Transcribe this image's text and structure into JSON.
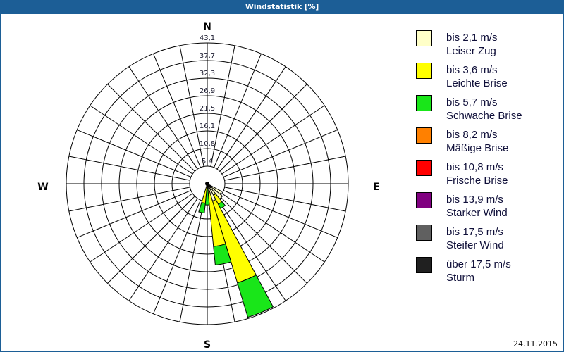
{
  "window": {
    "title": "Windstatistik [%]",
    "date": "24.11.2015"
  },
  "compass": {
    "north": "N",
    "east": "E",
    "south": "S",
    "west": "W"
  },
  "legend": [
    {
      "speed": "bis 2,1 m/s",
      "name": "Leiser Zug",
      "color": "#ffffc8"
    },
    {
      "speed": "bis 3,6 m/s",
      "name": "Leichte Brise",
      "color": "#ffff00"
    },
    {
      "speed": "bis 5,7 m/s",
      "name": "Schwache Brise",
      "color": "#19e619"
    },
    {
      "speed": "bis 8,2 m/s",
      "name": "Mäßige Brise",
      "color": "#ff8000"
    },
    {
      "speed": "bis 10,8 m/s",
      "name": "Frische Brise",
      "color": "#ff0000"
    },
    {
      "speed": "bis 13,9 m/s",
      "name": "Starker Wind",
      "color": "#800080"
    },
    {
      "speed": "bis 17,5 m/s",
      "name": "Steifer Wind",
      "color": "#606060"
    },
    {
      "speed": "über 17,5 m/s",
      "name": "Sturm",
      "color": "#202020"
    }
  ],
  "chart_data": {
    "type": "windrose",
    "title": "Windstatistik [%]",
    "unit": "%",
    "rmax": 43.1,
    "ring_labels": [
      "5,4",
      "10,8",
      "16,1",
      "21,5",
      "26,9",
      "32,3",
      "37,7",
      "43,1"
    ],
    "ring_values": [
      5.4,
      10.8,
      16.1,
      21.5,
      26.9,
      32.3,
      37.7,
      43.1
    ],
    "directions_count": 32,
    "axis_labels": {
      "N": "N",
      "E": "E",
      "S": "S",
      "W": "W"
    },
    "series": [
      "bis 2,1 m/s Leiser Zug",
      "bis 3,6 m/s Leichte Brise",
      "bis 5,7 m/s Schwache Brise",
      "bis 8,2 m/s Mäßige Brise",
      "bis 10,8 m/s Frische Brise",
      "bis 13,9 m/s Starker Wind",
      "bis 17,5 m/s Steifer Wind",
      "über 17,5 m/s Sturm"
    ],
    "petals": [
      {
        "direction": "SOzO",
        "bearing": 123.75,
        "values": [
          5.0,
          0,
          0,
          0,
          0,
          0,
          0,
          0
        ]
      },
      {
        "direction": "SO",
        "bearing": 135.0,
        "values": [
          6.0,
          0,
          0,
          0,
          0,
          0,
          0,
          0
        ]
      },
      {
        "direction": "SOzS",
        "bearing": 146.25,
        "values": [
          4.0,
          3.1,
          1.5,
          0,
          0,
          0,
          0,
          0
        ]
      },
      {
        "direction": "SSO",
        "bearing": 157.5,
        "values": [
          5.5,
          26.2,
          11.0,
          0,
          0,
          0,
          0,
          0
        ]
      },
      {
        "direction": "SzO",
        "bearing": 168.75,
        "values": [
          2.0,
          17.3,
          5.7,
          0,
          0,
          0,
          0,
          0
        ]
      },
      {
        "direction": "S",
        "bearing": 180.0,
        "values": [
          0,
          1.5,
          5.0,
          0,
          0,
          0,
          0,
          0
        ]
      },
      {
        "direction": "SzW",
        "bearing": 191.25,
        "values": [
          1.0,
          5.0,
          3.0,
          0,
          0,
          0,
          0,
          0
        ]
      }
    ],
    "legend_position": "right",
    "grid": true
  }
}
